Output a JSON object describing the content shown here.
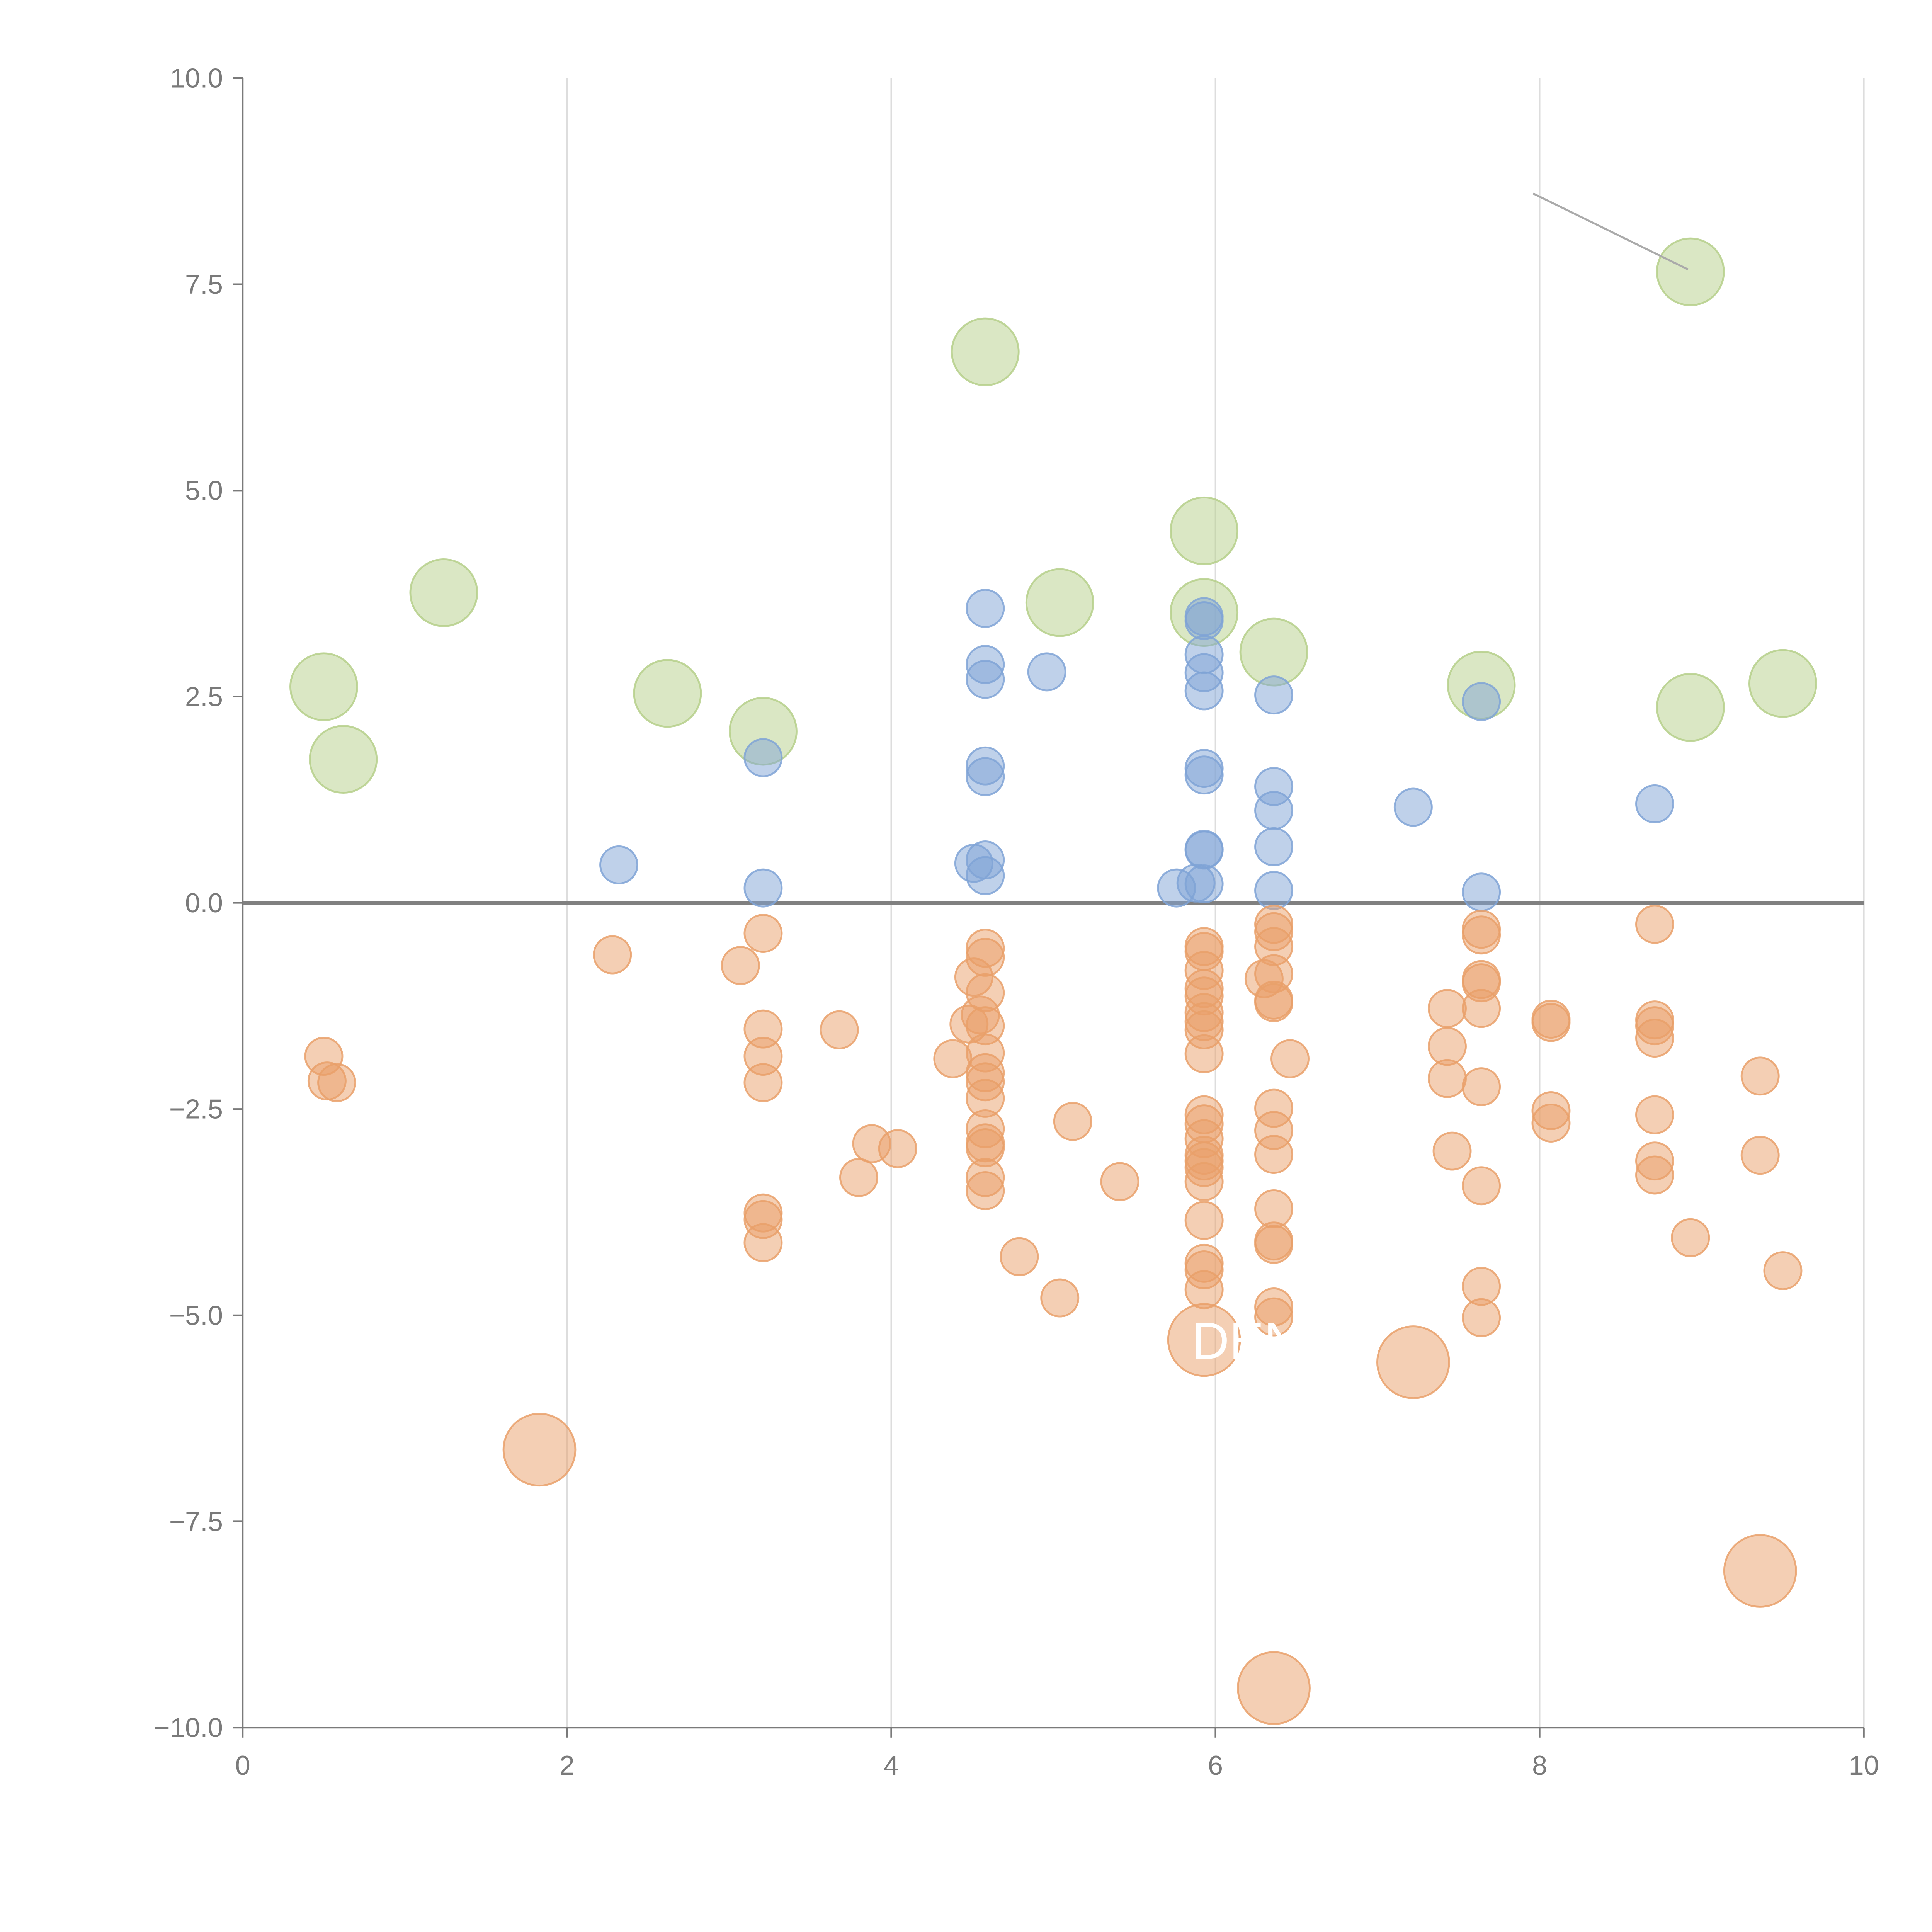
{
  "chart_data": {
    "type": "scatter",
    "title": "",
    "xlabel": "",
    "ylabel": "",
    "xlim": [
      0,
      10
    ],
    "ylim": [
      -10,
      10
    ],
    "x_ticks": [
      0,
      2,
      4,
      6,
      8,
      10
    ],
    "x_tick_labels": [
      "0",
      "2",
      "4",
      "6",
      "8",
      "10"
    ],
    "y_ticks": [
      10,
      7.5,
      5,
      2.5,
      0,
      -2.5,
      -5,
      -7.5,
      -10
    ],
    "y_tick_labels": [
      "10.0",
      "7.5",
      "5.0",
      "2.5",
      "0.0",
      "−2.5",
      "−5.0",
      "−7.5",
      "−10.0"
    ],
    "vertical_grid": true,
    "zero_line": true,
    "colors": {
      "large_positive": "#b5cf8a",
      "positive": "#7fa3d6",
      "negative": "#e9a06a",
      "axis": "#7a7a7a",
      "grid": "#dddddd",
      "zero_line": "#808080",
      "leader_line": "#aaaaaa"
    },
    "series": [
      {
        "name": "large-positive",
        "size": "large",
        "points": [
          [
            0.5,
            2.62
          ],
          [
            0.62,
            1.74
          ],
          [
            1.24,
            3.76
          ],
          [
            2.62,
            2.54
          ],
          [
            3.21,
            2.08
          ],
          [
            4.58,
            6.68
          ],
          [
            5.04,
            3.64
          ],
          [
            5.93,
            4.51
          ],
          [
            5.93,
            3.52
          ],
          [
            6.36,
            3.04
          ],
          [
            7.64,
            2.64
          ],
          [
            8.93,
            7.65
          ],
          [
            8.93,
            2.37
          ],
          [
            9.5,
            2.66
          ]
        ]
      },
      {
        "name": "positive",
        "size": "small",
        "points": [
          [
            2.32,
            0.46
          ],
          [
            3.21,
            1.76
          ],
          [
            3.21,
            0.18
          ],
          [
            4.51,
            0.48
          ],
          [
            4.58,
            3.57
          ],
          [
            4.58,
            2.89
          ],
          [
            4.58,
            2.71
          ],
          [
            4.58,
            1.66
          ],
          [
            4.58,
            1.53
          ],
          [
            4.58,
            0.52
          ],
          [
            4.58,
            0.33
          ],
          [
            4.96,
            2.8
          ],
          [
            5.76,
            0.18
          ],
          [
            5.88,
            0.24
          ],
          [
            5.93,
            3.47
          ],
          [
            5.93,
            3.42
          ],
          [
            5.93,
            3.01
          ],
          [
            5.93,
            2.79
          ],
          [
            5.93,
            2.57
          ],
          [
            5.93,
            1.63
          ],
          [
            5.93,
            1.55
          ],
          [
            5.93,
            0.65
          ],
          [
            5.93,
            0.64
          ],
          [
            5.93,
            0.23
          ],
          [
            6.36,
            2.52
          ],
          [
            6.36,
            1.41
          ],
          [
            6.36,
            1.12
          ],
          [
            6.36,
            0.68
          ],
          [
            6.36,
            0.15
          ],
          [
            7.22,
            1.16
          ],
          [
            7.64,
            2.44
          ],
          [
            7.64,
            0.13
          ],
          [
            8.71,
            1.2
          ]
        ]
      },
      {
        "name": "negative",
        "size": "small",
        "points": [
          [
            0.5,
            -1.86
          ],
          [
            0.52,
            -2.16
          ],
          [
            0.58,
            -2.18
          ],
          [
            2.28,
            -0.63
          ],
          [
            3.07,
            -0.76
          ],
          [
            3.21,
            -0.37
          ],
          [
            3.21,
            -1.53
          ],
          [
            3.21,
            -1.86
          ],
          [
            3.21,
            -2.18
          ],
          [
            3.21,
            -3.76
          ],
          [
            3.21,
            -3.84
          ],
          [
            3.21,
            -4.12
          ],
          [
            3.68,
            -1.54
          ],
          [
            3.8,
            -3.33
          ],
          [
            3.88,
            -2.92
          ],
          [
            4.04,
            -2.98
          ],
          [
            4.38,
            -1.89
          ],
          [
            4.48,
            -1.47
          ],
          [
            4.51,
            -0.9
          ],
          [
            4.55,
            -1.36
          ],
          [
            4.58,
            -0.55
          ],
          [
            4.58,
            -0.66
          ],
          [
            4.58,
            -1.09
          ],
          [
            4.58,
            -1.49
          ],
          [
            4.58,
            -1.82
          ],
          [
            4.58,
            -2.06
          ],
          [
            4.58,
            -2.17
          ],
          [
            4.58,
            -2.37
          ],
          [
            4.58,
            -2.74
          ],
          [
            4.58,
            -2.91
          ],
          [
            4.58,
            -2.97
          ],
          [
            4.58,
            -3.33
          ],
          [
            4.58,
            -3.49
          ],
          [
            4.79,
            -4.29
          ],
          [
            5.04,
            -4.79
          ],
          [
            5.12,
            -2.65
          ],
          [
            5.41,
            -3.38
          ],
          [
            5.93,
            -0.53
          ],
          [
            5.93,
            -0.59
          ],
          [
            5.93,
            -0.82
          ],
          [
            5.93,
            -1.04
          ],
          [
            5.93,
            -1.13
          ],
          [
            5.93,
            -1.33
          ],
          [
            5.93,
            -1.44
          ],
          [
            5.93,
            -1.54
          ],
          [
            5.93,
            -1.83
          ],
          [
            5.93,
            -2.57
          ],
          [
            5.93,
            -2.68
          ],
          [
            5.93,
            -2.86
          ],
          [
            5.93,
            -3.06
          ],
          [
            5.93,
            -3.13
          ],
          [
            5.93,
            -3.21
          ],
          [
            5.93,
            -3.38
          ],
          [
            5.93,
            -3.85
          ],
          [
            5.93,
            -4.37
          ],
          [
            5.93,
            -4.45
          ],
          [
            5.93,
            -4.69
          ],
          [
            6.3,
            -0.92
          ],
          [
            6.36,
            -0.26
          ],
          [
            6.36,
            -0.35
          ],
          [
            6.36,
            -0.53
          ],
          [
            6.36,
            -0.86
          ],
          [
            6.36,
            -1.18
          ],
          [
            6.36,
            -1.21
          ],
          [
            6.36,
            -2.49
          ],
          [
            6.36,
            -2.76
          ],
          [
            6.36,
            -3.05
          ],
          [
            6.36,
            -3.71
          ],
          [
            6.36,
            -4.1
          ],
          [
            6.36,
            -4.14
          ],
          [
            6.36,
            -4.9
          ],
          [
            6.36,
            -5.02
          ],
          [
            6.46,
            -1.89
          ],
          [
            7.43,
            -1.28
          ],
          [
            7.43,
            -1.74
          ],
          [
            7.43,
            -2.13
          ],
          [
            7.46,
            -3.01
          ],
          [
            7.64,
            -0.32
          ],
          [
            7.64,
            -0.39
          ],
          [
            7.64,
            -0.93
          ],
          [
            7.64,
            -0.97
          ],
          [
            7.64,
            -1.28
          ],
          [
            7.64,
            -2.23
          ],
          [
            7.64,
            -3.43
          ],
          [
            7.64,
            -4.65
          ],
          [
            7.64,
            -5.03
          ],
          [
            8.07,
            -1.41
          ],
          [
            8.07,
            -1.45
          ],
          [
            8.07,
            -2.52
          ],
          [
            8.07,
            -2.67
          ],
          [
            8.71,
            -0.26
          ],
          [
            8.71,
            -1.42
          ],
          [
            8.71,
            -1.49
          ],
          [
            8.71,
            -1.64
          ],
          [
            8.71,
            -2.57
          ],
          [
            8.71,
            -3.13
          ],
          [
            8.71,
            -3.3
          ],
          [
            8.93,
            -4.06
          ],
          [
            9.36,
            -2.1
          ],
          [
            9.36,
            -3.06
          ],
          [
            9.5,
            -4.46
          ]
        ]
      },
      {
        "name": "large-negative",
        "size": "large",
        "points": [
          [
            1.83,
            -6.63
          ],
          [
            5.93,
            -5.3
          ],
          [
            6.36,
            -9.52
          ],
          [
            7.22,
            -5.57
          ],
          [
            9.36,
            -8.1
          ]
        ]
      }
    ],
    "annotations": [
      {
        "text": "DEN",
        "x": 5.93,
        "y": -5.3
      }
    ]
  }
}
